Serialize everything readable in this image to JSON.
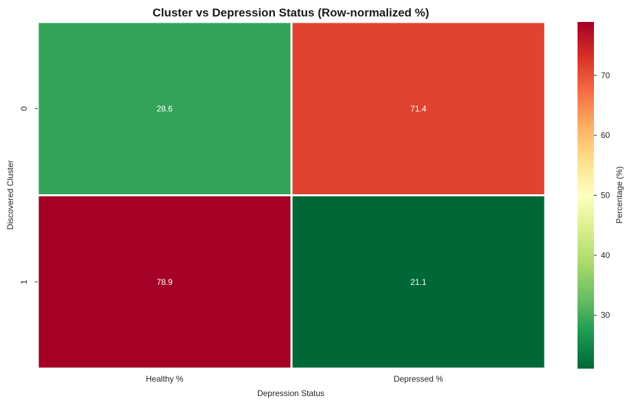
{
  "chart_data": {
    "type": "heatmap",
    "title": "Cluster vs Depression Status (Row-normalized %)",
    "xlabel": "Depression Status",
    "ylabel": "Discovered Cluster",
    "x_categories": [
      "Healthy %",
      "Depressed %"
    ],
    "y_categories": [
      "0",
      "1"
    ],
    "values": [
      [
        28.6,
        71.4
      ],
      [
        78.9,
        21.1
      ]
    ],
    "value_labels": [
      [
        "28.6",
        "71.4"
      ],
      [
        "78.9",
        "21.1"
      ]
    ],
    "colorbar": {
      "label": "Percentage (%)",
      "range": [
        21.1,
        78.9
      ],
      "ticks": [
        30,
        40,
        50,
        60,
        70
      ],
      "colormap": "RdYlGn_r"
    },
    "cell_colors": [
      [
        "#33a35a",
        "#e0432f"
      ],
      [
        "#a50026",
        "#006837"
      ]
    ],
    "label_color": "#ffffff",
    "cell_border_color": "#ffffff"
  }
}
